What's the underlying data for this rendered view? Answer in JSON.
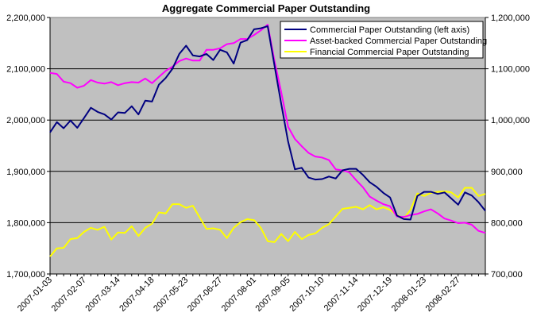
{
  "chart_data": {
    "type": "line",
    "title": "Aggregate Commercial Paper Outstanding",
    "grid": "horizontal",
    "legend_position": "top-right",
    "colors": {
      "plot_bg": "#C0C0C0",
      "grid": "#000000"
    },
    "y_left": {
      "lim": [
        1700000,
        2200000
      ],
      "ticks": [
        1700000,
        1800000,
        1900000,
        2000000,
        2100000,
        2200000
      ],
      "tick_labels": [
        "1,700,000",
        "1,800,000",
        "1,900,000",
        "2,000,000",
        "2,100,000",
        "2,200,000"
      ]
    },
    "y_right": {
      "lim": [
        700000,
        1200000
      ],
      "ticks": [
        700000,
        800000,
        900000,
        1000000,
        1100000,
        1200000
      ],
      "tick_labels": [
        "700,000",
        "800,000",
        "900,000",
        "1,000,000",
        "1,100,000",
        "1,200,000"
      ]
    },
    "x_tick_labels": [
      "2007-01-03",
      "2007-02-07",
      "2007-03-14",
      "2007-04-18",
      "2007-05-23",
      "2007-06-27",
      "2007-08-01",
      "2007-09-05",
      "2007-10-10",
      "2007-11-14",
      "2007-12-19",
      "2008-01-23",
      "2008-02-27"
    ],
    "x_start": "2007-01-03",
    "x_end": "2008-03-26",
    "series": [
      {
        "name": "Commercial Paper Outstanding (left axis)",
        "axis": "left",
        "color": "#000080",
        "points": [
          [
            "2007-01-03",
            1976000
          ],
          [
            "2007-01-10",
            1996000
          ],
          [
            "2007-01-17",
            1984000
          ],
          [
            "2007-01-24",
            1999000
          ],
          [
            "2007-01-31",
            1985000
          ],
          [
            "2007-02-07",
            2004000
          ],
          [
            "2007-02-14",
            2024000
          ],
          [
            "2007-02-21",
            2016000
          ],
          [
            "2007-02-28",
            2011000
          ],
          [
            "2007-03-07",
            2001000
          ],
          [
            "2007-03-14",
            2015000
          ],
          [
            "2007-03-21",
            2014000
          ],
          [
            "2007-03-28",
            2027000
          ],
          [
            "2007-04-04",
            2011000
          ],
          [
            "2007-04-11",
            2038000
          ],
          [
            "2007-04-18",
            2036000
          ],
          [
            "2007-04-25",
            2069000
          ],
          [
            "2007-05-02",
            2082000
          ],
          [
            "2007-05-09",
            2100000
          ],
          [
            "2007-05-16",
            2129000
          ],
          [
            "2007-05-23",
            2145000
          ],
          [
            "2007-05-30",
            2126000
          ],
          [
            "2007-06-06",
            2124000
          ],
          [
            "2007-06-13",
            2129000
          ],
          [
            "2007-06-20",
            2117000
          ],
          [
            "2007-06-27",
            2137000
          ],
          [
            "2007-07-04",
            2132000
          ],
          [
            "2007-07-11",
            2110000
          ],
          [
            "2007-07-18",
            2151000
          ],
          [
            "2007-07-25",
            2156000
          ],
          [
            "2007-08-01",
            2177000
          ],
          [
            "2007-08-08",
            2179000
          ],
          [
            "2007-08-15",
            2183000
          ],
          [
            "2007-08-22",
            2106000
          ],
          [
            "2007-08-29",
            2031000
          ],
          [
            "2007-09-05",
            1958000
          ],
          [
            "2007-09-12",
            1904000
          ],
          [
            "2007-09-19",
            1907000
          ],
          [
            "2007-09-26",
            1888000
          ],
          [
            "2007-10-03",
            1884000
          ],
          [
            "2007-10-10",
            1885000
          ],
          [
            "2007-10-17",
            1890000
          ],
          [
            "2007-10-24",
            1886000
          ],
          [
            "2007-10-31",
            1902000
          ],
          [
            "2007-11-07",
            1905000
          ],
          [
            "2007-11-14",
            1905000
          ],
          [
            "2007-11-21",
            1893000
          ],
          [
            "2007-11-28",
            1879000
          ],
          [
            "2007-12-05",
            1870000
          ],
          [
            "2007-12-12",
            1858000
          ],
          [
            "2007-12-19",
            1849000
          ],
          [
            "2007-12-26",
            1814000
          ],
          [
            "2008-01-02",
            1807000
          ],
          [
            "2008-01-09",
            1806000
          ],
          [
            "2008-01-16",
            1852000
          ],
          [
            "2008-01-23",
            1860000
          ],
          [
            "2008-01-30",
            1860000
          ],
          [
            "2008-02-06",
            1856000
          ],
          [
            "2008-02-13",
            1859000
          ],
          [
            "2008-02-20",
            1847000
          ],
          [
            "2008-02-27",
            1835000
          ],
          [
            "2008-03-05",
            1859000
          ],
          [
            "2008-03-12",
            1853000
          ],
          [
            "2008-03-19",
            1840000
          ],
          [
            "2008-03-26",
            1823000
          ]
        ]
      },
      {
        "name": "Asset-backed Commercial Paper Outstanding",
        "axis": "right",
        "color": "#FF00FF",
        "points": [
          [
            "2007-01-03",
            1092000
          ],
          [
            "2007-01-10",
            1090000
          ],
          [
            "2007-01-17",
            1075000
          ],
          [
            "2007-01-24",
            1072000
          ],
          [
            "2007-01-31",
            1063000
          ],
          [
            "2007-02-07",
            1067000
          ],
          [
            "2007-02-14",
            1078000
          ],
          [
            "2007-02-21",
            1073000
          ],
          [
            "2007-02-28",
            1071000
          ],
          [
            "2007-03-07",
            1074000
          ],
          [
            "2007-03-14",
            1068000
          ],
          [
            "2007-03-21",
            1072000
          ],
          [
            "2007-03-28",
            1074000
          ],
          [
            "2007-04-04",
            1073000
          ],
          [
            "2007-04-11",
            1081000
          ],
          [
            "2007-04-18",
            1072000
          ],
          [
            "2007-04-25",
            1084000
          ],
          [
            "2007-05-02",
            1096000
          ],
          [
            "2007-05-09",
            1104000
          ],
          [
            "2007-05-16",
            1115000
          ],
          [
            "2007-05-23",
            1120000
          ],
          [
            "2007-05-30",
            1116000
          ],
          [
            "2007-06-06",
            1116000
          ],
          [
            "2007-06-13",
            1137000
          ],
          [
            "2007-06-20",
            1137000
          ],
          [
            "2007-06-27",
            1140000
          ],
          [
            "2007-07-04",
            1148000
          ],
          [
            "2007-07-11",
            1150000
          ],
          [
            "2007-07-18",
            1158000
          ],
          [
            "2007-07-25",
            1158000
          ],
          [
            "2007-08-01",
            1166000
          ],
          [
            "2007-08-08",
            1175000
          ],
          [
            "2007-08-15",
            1186000
          ],
          [
            "2007-08-22",
            1115000
          ],
          [
            "2007-08-29",
            1054000
          ],
          [
            "2007-09-05",
            987000
          ],
          [
            "2007-09-12",
            963000
          ],
          [
            "2007-09-19",
            949000
          ],
          [
            "2007-09-26",
            936000
          ],
          [
            "2007-10-03",
            929000
          ],
          [
            "2007-10-10",
            927000
          ],
          [
            "2007-10-17",
            922000
          ],
          [
            "2007-10-24",
            904000
          ],
          [
            "2007-10-31",
            902000
          ],
          [
            "2007-11-07",
            898000
          ],
          [
            "2007-11-14",
            883000
          ],
          [
            "2007-11-21",
            869000
          ],
          [
            "2007-11-28",
            851000
          ],
          [
            "2007-12-05",
            843000
          ],
          [
            "2007-12-12",
            836000
          ],
          [
            "2007-12-19",
            832000
          ],
          [
            "2007-12-26",
            812000
          ],
          [
            "2008-01-02",
            811000
          ],
          [
            "2008-01-09",
            815000
          ],
          [
            "2008-01-16",
            817000
          ],
          [
            "2008-01-23",
            822000
          ],
          [
            "2008-01-30",
            826000
          ],
          [
            "2008-02-06",
            818000
          ],
          [
            "2008-02-13",
            808000
          ],
          [
            "2008-02-20",
            804000
          ],
          [
            "2008-02-27",
            799000
          ],
          [
            "2008-03-05",
            800000
          ],
          [
            "2008-03-12",
            796000
          ],
          [
            "2008-03-19",
            784000
          ],
          [
            "2008-03-26",
            780000
          ]
        ]
      },
      {
        "name": "Financial Commercial Paper Outstanding",
        "axis": "right",
        "color": "#FFFF00",
        "points": [
          [
            "2007-01-03",
            734000
          ],
          [
            "2007-01-10",
            750000
          ],
          [
            "2007-01-17",
            751000
          ],
          [
            "2007-01-24",
            768000
          ],
          [
            "2007-01-31",
            770000
          ],
          [
            "2007-02-07",
            782000
          ],
          [
            "2007-02-14",
            790000
          ],
          [
            "2007-02-21",
            786000
          ],
          [
            "2007-02-28",
            792000
          ],
          [
            "2007-03-07",
            767000
          ],
          [
            "2007-03-14",
            781000
          ],
          [
            "2007-03-21",
            780000
          ],
          [
            "2007-03-28",
            793000
          ],
          [
            "2007-04-04",
            774000
          ],
          [
            "2007-04-11",
            790000
          ],
          [
            "2007-04-18",
            798000
          ],
          [
            "2007-04-25",
            820000
          ],
          [
            "2007-05-02",
            818000
          ],
          [
            "2007-05-09",
            836000
          ],
          [
            "2007-05-16",
            836000
          ],
          [
            "2007-05-23",
            829000
          ],
          [
            "2007-05-30",
            833000
          ],
          [
            "2007-06-06",
            810000
          ],
          [
            "2007-06-13",
            788000
          ],
          [
            "2007-06-20",
            789000
          ],
          [
            "2007-06-27",
            786000
          ],
          [
            "2007-07-04",
            770000
          ],
          [
            "2007-07-11",
            790000
          ],
          [
            "2007-07-18",
            801000
          ],
          [
            "2007-07-25",
            807000
          ],
          [
            "2007-08-01",
            805000
          ],
          [
            "2007-08-08",
            790000
          ],
          [
            "2007-08-15",
            764000
          ],
          [
            "2007-08-22",
            762000
          ],
          [
            "2007-08-29",
            778000
          ],
          [
            "2007-09-05",
            764000
          ],
          [
            "2007-09-12",
            782000
          ],
          [
            "2007-09-19",
            768000
          ],
          [
            "2007-09-26",
            776000
          ],
          [
            "2007-10-03",
            779000
          ],
          [
            "2007-10-10",
            790000
          ],
          [
            "2007-10-17",
            797000
          ],
          [
            "2007-10-24",
            812000
          ],
          [
            "2007-10-31",
            827000
          ],
          [
            "2007-11-07",
            829000
          ],
          [
            "2007-11-14",
            831000
          ],
          [
            "2007-11-21",
            826000
          ],
          [
            "2007-11-28",
            834000
          ],
          [
            "2007-12-05",
            826000
          ],
          [
            "2007-12-12",
            830000
          ],
          [
            "2007-12-19",
            825000
          ],
          [
            "2007-12-26",
            815000
          ],
          [
            "2008-01-02",
            808000
          ],
          [
            "2008-01-09",
            825000
          ],
          [
            "2008-01-16",
            857000
          ],
          [
            "2008-01-23",
            852000
          ],
          [
            "2008-01-30",
            858000
          ],
          [
            "2008-02-06",
            860000
          ],
          [
            "2008-02-13",
            861000
          ],
          [
            "2008-02-20",
            859000
          ],
          [
            "2008-02-27",
            849000
          ],
          [
            "2008-03-05",
            868000
          ],
          [
            "2008-03-12",
            868000
          ],
          [
            "2008-03-19",
            852000
          ],
          [
            "2008-03-26",
            856000
          ]
        ]
      }
    ]
  }
}
